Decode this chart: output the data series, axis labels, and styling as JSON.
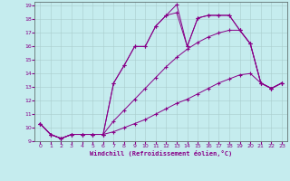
{
  "bg_color": "#c5ecee",
  "line_color": "#880088",
  "grid_color": "#aacccc",
  "xlabel": "Windchill (Refroidissement éolien,°C)",
  "xlim": [
    -0.5,
    23.5
  ],
  "ylim": [
    9,
    19.3
  ],
  "xticks": [
    0,
    1,
    2,
    3,
    4,
    5,
    6,
    7,
    8,
    9,
    10,
    11,
    12,
    13,
    14,
    15,
    16,
    17,
    18,
    19,
    20,
    21,
    22,
    23
  ],
  "yticks": [
    9,
    10,
    11,
    12,
    13,
    14,
    15,
    16,
    17,
    18,
    19
  ],
  "curves": [
    {
      "x": [
        0,
        1,
        2,
        3,
        4,
        5,
        6,
        7,
        8,
        9,
        10,
        11,
        12,
        13,
        14,
        15,
        16,
        17,
        18,
        19,
        20,
        21,
        22,
        23
      ],
      "y": [
        10.3,
        9.5,
        9.2,
        9.5,
        9.5,
        9.5,
        9.5,
        9.7,
        10.0,
        10.3,
        10.6,
        11.0,
        11.4,
        11.8,
        12.1,
        12.5,
        12.9,
        13.3,
        13.6,
        13.9,
        14.0,
        13.3,
        12.9,
        13.3
      ]
    },
    {
      "x": [
        0,
        1,
        2,
        3,
        4,
        5,
        6,
        7,
        8,
        9,
        10,
        11,
        12,
        13,
        14,
        15,
        16,
        17,
        18,
        19,
        20,
        21,
        22,
        23
      ],
      "y": [
        10.3,
        9.5,
        9.2,
        9.5,
        9.5,
        9.5,
        9.5,
        10.5,
        11.3,
        12.1,
        12.9,
        13.7,
        14.5,
        15.2,
        15.8,
        16.3,
        16.7,
        17.0,
        17.2,
        17.2,
        16.2,
        13.3,
        12.9,
        13.3
      ]
    },
    {
      "x": [
        0,
        1,
        2,
        3,
        4,
        5,
        6,
        7,
        8,
        9,
        10,
        11,
        12,
        13,
        14,
        15,
        16,
        17,
        18,
        19,
        20,
        21,
        22,
        23
      ],
      "y": [
        10.3,
        9.5,
        9.2,
        9.5,
        9.5,
        9.5,
        9.5,
        13.3,
        14.6,
        16.0,
        16.0,
        17.5,
        18.3,
        18.5,
        16.0,
        18.1,
        18.3,
        18.3,
        18.3,
        17.2,
        16.2,
        13.3,
        12.9,
        13.3
      ]
    },
    {
      "x": [
        0,
        1,
        2,
        3,
        4,
        5,
        6,
        7,
        8,
        9,
        10,
        11,
        12,
        13,
        14,
        15,
        16,
        17,
        18,
        19,
        20,
        21,
        22,
        23
      ],
      "y": [
        10.3,
        9.5,
        9.2,
        9.5,
        9.5,
        9.5,
        9.5,
        13.3,
        14.6,
        16.0,
        16.0,
        17.5,
        18.3,
        19.1,
        16.0,
        18.1,
        18.3,
        18.3,
        18.3,
        17.2,
        16.2,
        13.3,
        12.9,
        13.3
      ]
    }
  ]
}
